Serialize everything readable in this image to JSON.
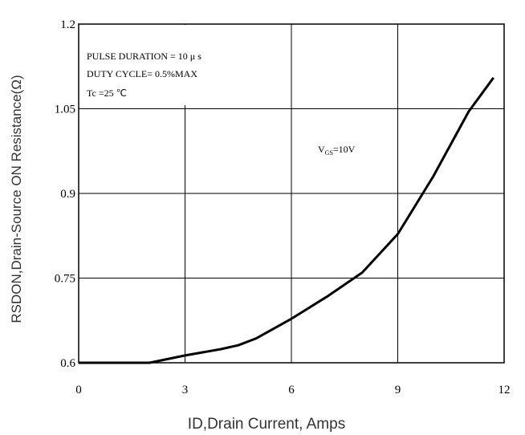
{
  "chart_data": {
    "type": "line",
    "xlabel": "ID,Drain Current, Amps",
    "ylabel": "RSDON,Drain-Source ON Resistance(Ω)",
    "annotations": [
      "PULSE   DURATION = 10 μ s",
      "DUTY   CYCLE= 0.5%MAX",
      "Tc =25  ℃"
    ],
    "curve_label": [
      "V",
      "GS",
      "=10V"
    ],
    "x": [
      0,
      1,
      2,
      3,
      4,
      4.5,
      5,
      6,
      7,
      8,
      9,
      10,
      11,
      11.7
    ],
    "series": [
      {
        "color": "#000000",
        "values": [
          0.6,
          0.6,
          0.6,
          0.613,
          0.624,
          0.631,
          0.643,
          0.678,
          0.717,
          0.76,
          0.828,
          0.93,
          1.045,
          1.105
        ]
      }
    ],
    "xlim": [
      0,
      12
    ],
    "xticks": [
      0,
      3,
      6,
      9,
      12
    ],
    "ylim": [
      0.6,
      1.2
    ],
    "yticks": [
      0.6,
      0.75,
      0.9,
      1.05,
      1.2
    ],
    "grid": true
  }
}
